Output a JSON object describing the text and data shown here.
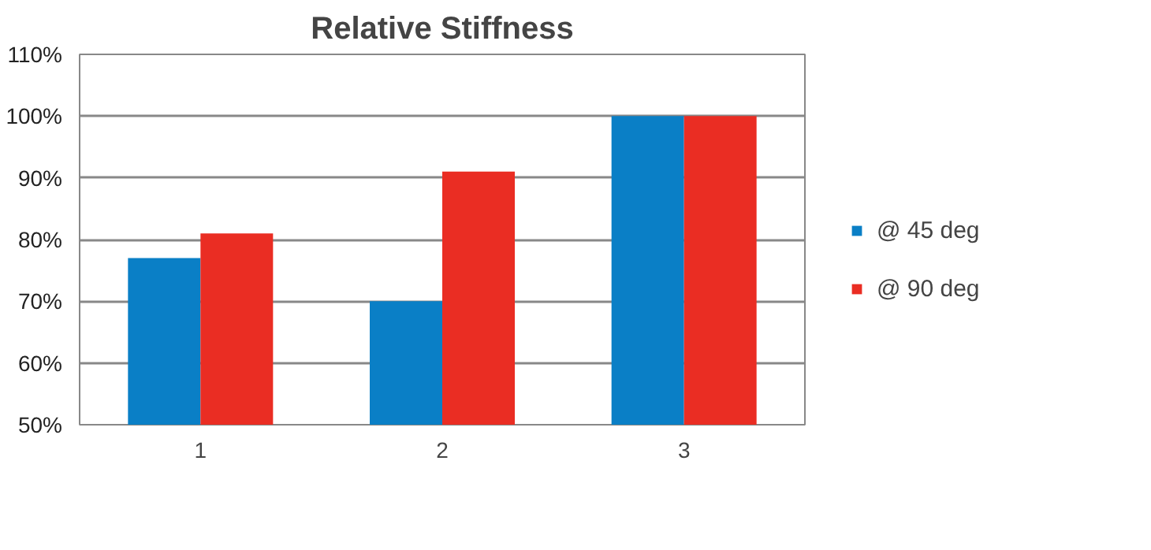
{
  "chart_data": {
    "type": "bar",
    "title": "Relative Stiffness",
    "categories": [
      "1",
      "2",
      "3"
    ],
    "series": [
      {
        "name": "@ 45 deg",
        "color": "#0a7fc6",
        "values": [
          77,
          70,
          100
        ]
      },
      {
        "name": "@ 90 deg",
        "color": "#ea2d23",
        "values": [
          81,
          91,
          100
        ]
      }
    ],
    "ylim": [
      50,
      110
    ],
    "yticks": [
      {
        "value": 50,
        "label": "50%"
      },
      {
        "value": 60,
        "label": "60%"
      },
      {
        "value": 70,
        "label": "70%"
      },
      {
        "value": 80,
        "label": "80%"
      },
      {
        "value": 90,
        "label": "90%"
      },
      {
        "value": 100,
        "label": "100%"
      },
      {
        "value": 110,
        "label": "110%"
      }
    ],
    "grid": "y",
    "legend": "right"
  }
}
